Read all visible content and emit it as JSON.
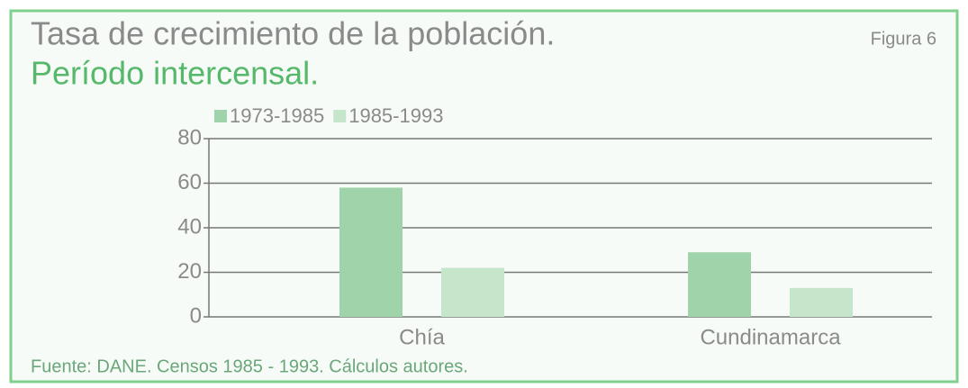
{
  "chart_data": {
    "type": "bar",
    "title": "Tasa de crecimiento de la población.",
    "subtitle": "Período intercensal.",
    "figure_label": "Figura 6",
    "source": "Fuente: DANE. Censos 1985 - 1993. Cálculos autores.",
    "categories": [
      "Chía",
      "Cundinamarca"
    ],
    "series": [
      {
        "name": "1973-1985",
        "color": "#9fd4aa",
        "values": [
          58,
          29
        ]
      },
      {
        "name": "1985-1993",
        "color": "#c6e6cc",
        "values": [
          22,
          13
        ]
      }
    ],
    "ylim": [
      0,
      80
    ],
    "yticks": [
      0,
      20,
      40,
      60,
      80
    ],
    "grid": true
  }
}
